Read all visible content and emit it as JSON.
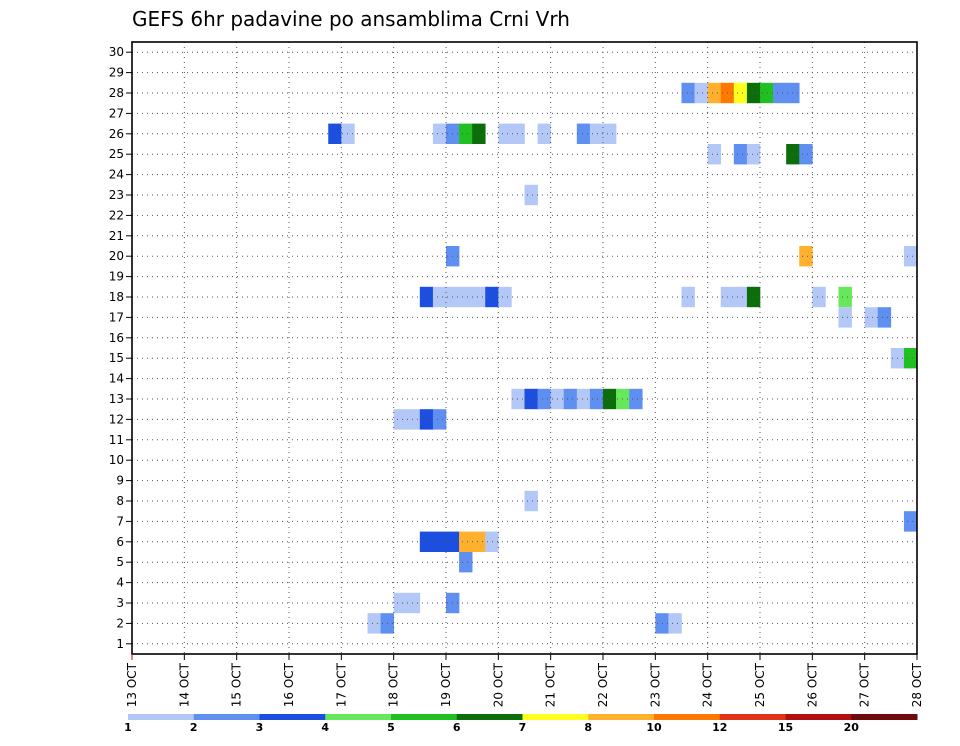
{
  "chart_data": {
    "type": "heatmap",
    "title": "GEFS 6hr padavine po ansamblima Crni Vrh",
    "xlabel": "",
    "ylabel": "",
    "x_ticks": [
      "13 OCT",
      "14 OCT",
      "15 OCT",
      "16 OCT",
      "17 OCT",
      "18 OCT",
      "19 OCT",
      "20 OCT",
      "21 OCT",
      "22 OCT",
      "23 OCT",
      "24 OCT",
      "25 OCT",
      "26 OCT",
      "27 OCT",
      "28 OCT"
    ],
    "x_unit": "days since 13 OCT",
    "xlim": [
      0,
      15
    ],
    "y_ticks": [
      1,
      2,
      3,
      4,
      5,
      6,
      7,
      8,
      9,
      10,
      11,
      12,
      13,
      14,
      15,
      16,
      17,
      18,
      19,
      20,
      21,
      22,
      23,
      24,
      25,
      26,
      27,
      28,
      29,
      30
    ],
    "ylim": [
      0.5,
      30.5
    ],
    "grid": true,
    "legend": {
      "position": "bottom",
      "labels": [
        "1",
        "2",
        "3",
        "4",
        "5",
        "6",
        "7",
        "8",
        "10",
        "12",
        "15",
        "20"
      ],
      "colors": [
        "#b4c8f8",
        "#5f8ff0",
        "#1c4ee0",
        "#66e85a",
        "#20c020",
        "#0b6e0b",
        "#ffff1e",
        "#ffb12e",
        "#ff7800",
        "#e1331a",
        "#b01010",
        "#6e0a0a"
      ]
    },
    "cells": [
      {
        "member": 28,
        "day": 10.5,
        "class": 2
      },
      {
        "member": 28,
        "day": 10.75,
        "class": 1
      },
      {
        "member": 28,
        "day": 11.0,
        "class": 8
      },
      {
        "member": 28,
        "day": 11.25,
        "class": 9
      },
      {
        "member": 28,
        "day": 11.5,
        "class": 7
      },
      {
        "member": 28,
        "day": 11.75,
        "class": 6
      },
      {
        "member": 28,
        "day": 12.0,
        "class": 5
      },
      {
        "member": 28,
        "day": 12.25,
        "class": 2
      },
      {
        "member": 28,
        "day": 12.5,
        "class": 2
      },
      {
        "member": 26,
        "day": 3.75,
        "class": 3
      },
      {
        "member": 26,
        "day": 4.0,
        "class": 1
      },
      {
        "member": 26,
        "day": 5.75,
        "class": 1
      },
      {
        "member": 26,
        "day": 6.0,
        "class": 2
      },
      {
        "member": 26,
        "day": 6.25,
        "class": 5
      },
      {
        "member": 26,
        "day": 6.5,
        "class": 6
      },
      {
        "member": 26,
        "day": 7.0,
        "class": 1
      },
      {
        "member": 26,
        "day": 7.25,
        "class": 1
      },
      {
        "member": 26,
        "day": 7.75,
        "class": 1
      },
      {
        "member": 26,
        "day": 8.5,
        "class": 2
      },
      {
        "member": 26,
        "day": 8.75,
        "class": 1
      },
      {
        "member": 26,
        "day": 9.0,
        "class": 1
      },
      {
        "member": 25,
        "day": 11.0,
        "class": 1
      },
      {
        "member": 25,
        "day": 11.5,
        "class": 2
      },
      {
        "member": 25,
        "day": 11.75,
        "class": 1
      },
      {
        "member": 25,
        "day": 12.5,
        "class": 6
      },
      {
        "member": 25,
        "day": 12.75,
        "class": 2
      },
      {
        "member": 23,
        "day": 7.5,
        "class": 1
      },
      {
        "member": 20,
        "day": 6.0,
        "class": 2
      },
      {
        "member": 20,
        "day": 12.75,
        "class": 8
      },
      {
        "member": 20,
        "day": 14.75,
        "class": 1
      },
      {
        "member": 18,
        "day": 5.5,
        "class": 3
      },
      {
        "member": 18,
        "day": 5.75,
        "class": 1
      },
      {
        "member": 18,
        "day": 6.0,
        "class": 1
      },
      {
        "member": 18,
        "day": 6.25,
        "class": 1
      },
      {
        "member": 18,
        "day": 6.5,
        "class": 1
      },
      {
        "member": 18,
        "day": 6.75,
        "class": 3
      },
      {
        "member": 18,
        "day": 7.0,
        "class": 1
      },
      {
        "member": 18,
        "day": 10.5,
        "class": 1
      },
      {
        "member": 18,
        "day": 11.25,
        "class": 1
      },
      {
        "member": 18,
        "day": 11.5,
        "class": 1
      },
      {
        "member": 18,
        "day": 11.75,
        "class": 6
      },
      {
        "member": 18,
        "day": 13.0,
        "class": 1
      },
      {
        "member": 18,
        "day": 13.5,
        "class": 4
      },
      {
        "member": 17,
        "day": 13.5,
        "class": 1
      },
      {
        "member": 17,
        "day": 14.0,
        "class": 1
      },
      {
        "member": 17,
        "day": 14.25,
        "class": 2
      },
      {
        "member": 15,
        "day": 14.5,
        "class": 1
      },
      {
        "member": 15,
        "day": 14.75,
        "class": 5
      },
      {
        "member": 13,
        "day": 7.25,
        "class": 1
      },
      {
        "member": 13,
        "day": 7.5,
        "class": 3
      },
      {
        "member": 13,
        "day": 7.75,
        "class": 2
      },
      {
        "member": 13,
        "day": 8.0,
        "class": 1
      },
      {
        "member": 13,
        "day": 8.25,
        "class": 2
      },
      {
        "member": 13,
        "day": 8.5,
        "class": 1
      },
      {
        "member": 13,
        "day": 8.75,
        "class": 2
      },
      {
        "member": 13,
        "day": 9.0,
        "class": 6
      },
      {
        "member": 13,
        "day": 9.25,
        "class": 4
      },
      {
        "member": 13,
        "day": 9.5,
        "class": 2
      },
      {
        "member": 12,
        "day": 5.0,
        "class": 1
      },
      {
        "member": 12,
        "day": 5.25,
        "class": 1
      },
      {
        "member": 12,
        "day": 5.5,
        "class": 3
      },
      {
        "member": 12,
        "day": 5.75,
        "class": 2
      },
      {
        "member": 8,
        "day": 7.5,
        "class": 1
      },
      {
        "member": 7,
        "day": 14.75,
        "class": 2
      },
      {
        "member": 6,
        "day": 5.5,
        "class": 3
      },
      {
        "member": 6,
        "day": 5.75,
        "class": 3
      },
      {
        "member": 6,
        "day": 6.0,
        "class": 3
      },
      {
        "member": 6,
        "day": 6.25,
        "class": 8
      },
      {
        "member": 6,
        "day": 6.5,
        "class": 8
      },
      {
        "member": 6,
        "day": 6.75,
        "class": 1
      },
      {
        "member": 5,
        "day": 6.25,
        "class": 2
      },
      {
        "member": 3,
        "day": 5.0,
        "class": 1
      },
      {
        "member": 3,
        "day": 5.25,
        "class": 1
      },
      {
        "member": 3,
        "day": 6.0,
        "class": 2
      },
      {
        "member": 2,
        "day": 4.5,
        "class": 1
      },
      {
        "member": 2,
        "day": 4.75,
        "class": 2
      },
      {
        "member": 2,
        "day": 10.0,
        "class": 2
      },
      {
        "member": 2,
        "day": 10.25,
        "class": 1
      }
    ]
  }
}
